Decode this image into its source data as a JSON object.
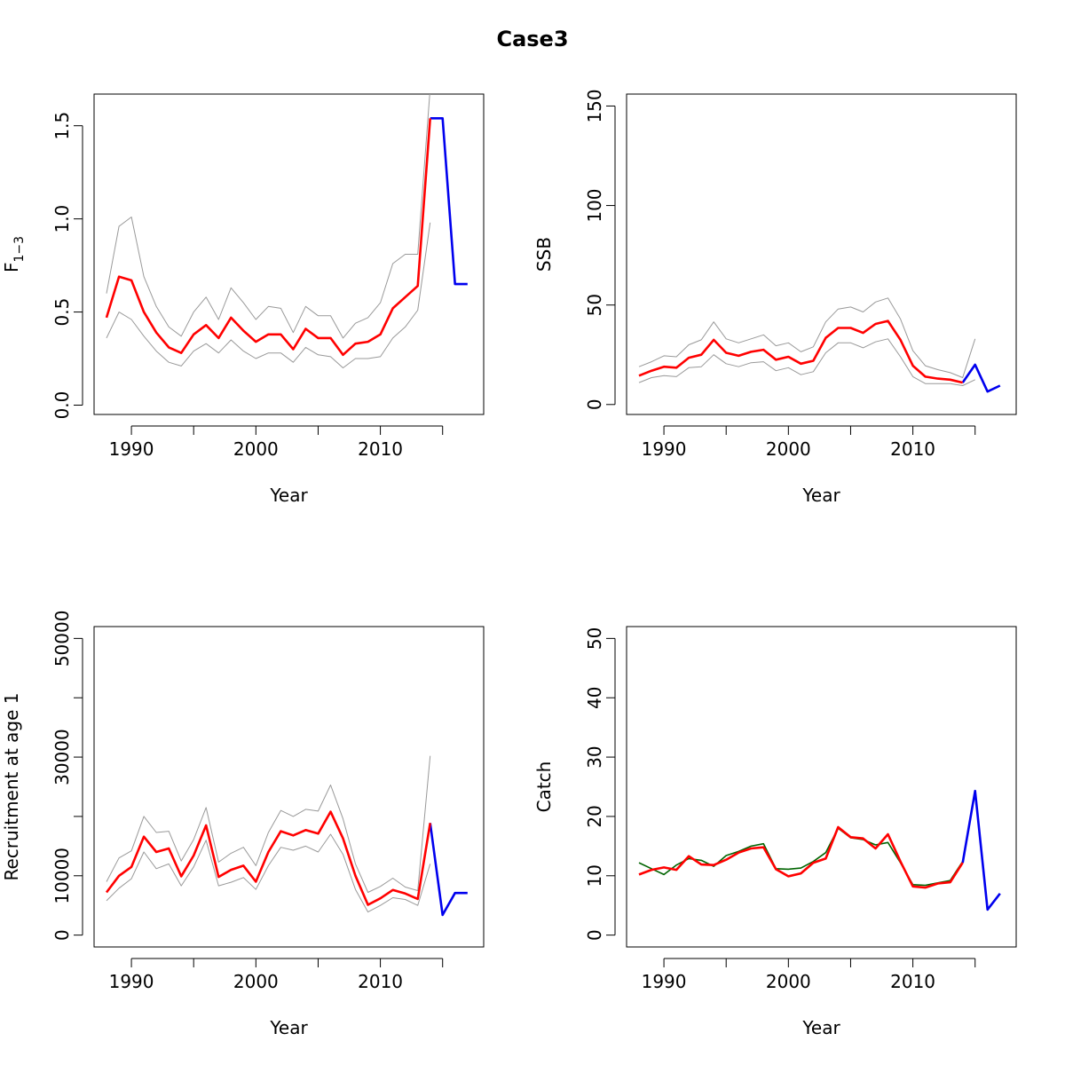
{
  "title": "Case3",
  "colors": {
    "estimate": "#ff0000",
    "ci": "#999999",
    "projection": "#0000ee",
    "observed": "#006400",
    "axis": "#000000"
  },
  "chart_data": [
    {
      "id": "f",
      "type": "line",
      "xlabel": "Year",
      "ylabel_main": "F",
      "ylabel_sub": "1−3",
      "xlim": [
        1987,
        2018.3
      ],
      "ylim": [
        -0.05,
        1.67
      ],
      "xticks": [
        1990,
        1995,
        2000,
        2005,
        2010,
        2015
      ],
      "xtick_labels": [
        "1990",
        "",
        "2000",
        "",
        "2010",
        ""
      ],
      "yticks": [
        0,
        0.5,
        1,
        1.5
      ],
      "ytick_labels": [
        "0.0",
        "0.5",
        "1.0",
        "1.5"
      ],
      "series": [
        {
          "role": "ci_lower",
          "x": [
            1988,
            1989,
            1990,
            1991,
            1992,
            1993,
            1994,
            1995,
            1996,
            1997,
            1998,
            1999,
            2000,
            2001,
            2002,
            2003,
            2004,
            2005,
            2006,
            2007,
            2008,
            2009,
            2010,
            2011,
            2012,
            2013,
            2014
          ],
          "values": [
            0.36,
            0.5,
            0.46,
            0.37,
            0.29,
            0.23,
            0.21,
            0.29,
            0.33,
            0.28,
            0.35,
            0.29,
            0.25,
            0.28,
            0.28,
            0.23,
            0.31,
            0.27,
            0.26,
            0.2,
            0.25,
            0.25,
            0.26,
            0.36,
            0.42,
            0.51,
            0.98
          ]
        },
        {
          "role": "ci_upper",
          "x": [
            1988,
            1989,
            1990,
            1991,
            1992,
            1993,
            1994,
            1995,
            1996,
            1997,
            1998,
            1999,
            2000,
            2001,
            2002,
            2003,
            2004,
            2005,
            2006,
            2007,
            2008,
            2009,
            2010,
            2011,
            2012,
            2013,
            2014
          ],
          "values": [
            0.6,
            0.96,
            1.01,
            0.69,
            0.53,
            0.42,
            0.37,
            0.5,
            0.58,
            0.46,
            0.63,
            0.55,
            0.46,
            0.53,
            0.52,
            0.39,
            0.53,
            0.48,
            0.48,
            0.36,
            0.44,
            0.47,
            0.55,
            0.76,
            0.81,
            0.81,
            1.7
          ]
        },
        {
          "role": "estimate",
          "x": [
            1988,
            1989,
            1990,
            1991,
            1992,
            1993,
            1994,
            1995,
            1996,
            1997,
            1998,
            1999,
            2000,
            2001,
            2002,
            2003,
            2004,
            2005,
            2006,
            2007,
            2008,
            2009,
            2010,
            2011,
            2012,
            2013,
            2014
          ],
          "values": [
            0.47,
            0.69,
            0.67,
            0.5,
            0.39,
            0.31,
            0.28,
            0.38,
            0.43,
            0.36,
            0.47,
            0.4,
            0.34,
            0.38,
            0.38,
            0.3,
            0.41,
            0.36,
            0.36,
            0.27,
            0.33,
            0.34,
            0.38,
            0.52,
            0.58,
            0.64,
            1.54
          ]
        },
        {
          "role": "projection",
          "x": [
            2014,
            2015,
            2016,
            2017
          ],
          "values": [
            1.54,
            1.54,
            0.65,
            0.65
          ]
        }
      ]
    },
    {
      "id": "ssb",
      "type": "line",
      "xlabel": "Year",
      "ylabel_main": "SSB",
      "ylabel_sub": "",
      "xlim": [
        1987,
        2018.3
      ],
      "ylim": [
        -5,
        156
      ],
      "xticks": [
        1990,
        1995,
        2000,
        2005,
        2010,
        2015
      ],
      "xtick_labels": [
        "1990",
        "",
        "2000",
        "",
        "2010",
        ""
      ],
      "yticks": [
        0,
        50,
        100,
        150
      ],
      "ytick_labels": [
        "0",
        "50",
        "100",
        "150"
      ],
      "series": [
        {
          "role": "ci_lower",
          "x": [
            1988,
            1989,
            1990,
            1991,
            1992,
            1993,
            1994,
            1995,
            1996,
            1997,
            1998,
            1999,
            2000,
            2001,
            2002,
            2003,
            2004,
            2005,
            2006,
            2007,
            2008,
            2009,
            2010,
            2011,
            2012,
            2013,
            2014,
            2015
          ],
          "values": [
            11,
            13.5,
            14.5,
            14,
            18.5,
            19,
            25,
            20.5,
            19,
            21,
            21.5,
            17,
            18.5,
            15,
            16.5,
            26,
            31,
            31,
            28.5,
            31.5,
            33,
            24,
            14,
            10.5,
            10.5,
            10.5,
            9.5,
            12.5
          ]
        },
        {
          "role": "ci_upper",
          "x": [
            1988,
            1989,
            1990,
            1991,
            1992,
            1993,
            1994,
            1995,
            1996,
            1997,
            1998,
            1999,
            2000,
            2001,
            2002,
            2003,
            2004,
            2005,
            2006,
            2007,
            2008,
            2009,
            2010,
            2011,
            2012,
            2013,
            2014,
            2015
          ],
          "values": [
            19,
            21.5,
            24.5,
            24,
            30,
            32.5,
            41.5,
            33,
            31,
            33,
            35,
            29.5,
            31,
            26.5,
            29,
            41.5,
            48,
            49,
            46.5,
            51.5,
            53.5,
            43,
            27,
            19.5,
            17.5,
            16,
            13.5,
            33
          ]
        },
        {
          "role": "estimate",
          "x": [
            1988,
            1989,
            1990,
            1991,
            1992,
            1993,
            1994,
            1995,
            1996,
            1997,
            1998,
            1999,
            2000,
            2001,
            2002,
            2003,
            2004,
            2005,
            2006,
            2007,
            2008,
            2009,
            2010,
            2011,
            2012,
            2013,
            2014
          ],
          "values": [
            14.5,
            17,
            19,
            18.5,
            23.5,
            25,
            32.5,
            26,
            24.5,
            26.5,
            27.5,
            22.5,
            24,
            20.5,
            22,
            33.5,
            38.5,
            38.5,
            36,
            40.5,
            42,
            32.5,
            19.5,
            14,
            13,
            12.5,
            11
          ]
        },
        {
          "role": "projection",
          "x": [
            2014,
            2015,
            2016,
            2017
          ],
          "values": [
            11,
            20,
            6.5,
            9.5
          ]
        }
      ]
    },
    {
      "id": "recruitment",
      "type": "line",
      "xlabel": "Year",
      "ylabel_main": "Recruitment at age 1",
      "ylabel_sub": "",
      "xlim": [
        1987,
        2018.3
      ],
      "ylim": [
        -2000,
        52000
      ],
      "xticks": [
        1990,
        1995,
        2000,
        2005,
        2010,
        2015
      ],
      "xtick_labels": [
        "1990",
        "",
        "2000",
        "",
        "2010",
        ""
      ],
      "yticks": [
        0,
        10000,
        20000,
        30000,
        40000,
        50000
      ],
      "ytick_labels": [
        "0",
        "10000",
        "",
        "30000",
        "",
        "50000"
      ],
      "series": [
        {
          "role": "ci_lower",
          "x": [
            1988,
            1989,
            1990,
            1991,
            1992,
            1993,
            1994,
            1995,
            1996,
            1997,
            1998,
            1999,
            2000,
            2001,
            2002,
            2003,
            2004,
            2005,
            2006,
            2007,
            2008,
            2009,
            2010,
            2011,
            2012,
            2013,
            2014
          ],
          "values": [
            5800,
            7900,
            9500,
            14000,
            11200,
            12000,
            8300,
            11500,
            16000,
            8300,
            8900,
            9700,
            7700,
            11700,
            14800,
            14300,
            15000,
            14000,
            17000,
            13600,
            7700,
            3900,
            5000,
            6300,
            6000,
            5000,
            12000
          ]
        },
        {
          "role": "ci_upper",
          "x": [
            1988,
            1989,
            1990,
            1991,
            1992,
            1993,
            1994,
            1995,
            1996,
            1997,
            1998,
            1999,
            2000,
            2001,
            2002,
            2003,
            2004,
            2005,
            2006,
            2007,
            2008,
            2009,
            2010,
            2011,
            2012,
            2013,
            2014
          ],
          "values": [
            9000,
            13000,
            14200,
            20000,
            17300,
            17500,
            12500,
            16100,
            21500,
            12300,
            13800,
            14800,
            11700,
            17300,
            21000,
            20000,
            21200,
            20900,
            25300,
            19600,
            12000,
            7200,
            8200,
            9600,
            8100,
            7500,
            30200
          ]
        },
        {
          "role": "estimate",
          "x": [
            1988,
            1989,
            1990,
            1991,
            1992,
            1993,
            1994,
            1995,
            1996,
            1997,
            1998,
            1999,
            2000,
            2001,
            2002,
            2003,
            2004,
            2005,
            2006,
            2007,
            2008,
            2009,
            2010,
            2011,
            2012,
            2013,
            2014
          ],
          "values": [
            7200,
            10000,
            11500,
            16600,
            14000,
            14600,
            9900,
            13400,
            18500,
            9800,
            11000,
            11700,
            9000,
            14000,
            17500,
            16800,
            17700,
            17100,
            20800,
            16300,
            10000,
            5100,
            6200,
            7600,
            7000,
            6100,
            18900
          ]
        },
        {
          "role": "projection",
          "x": [
            2014,
            2015,
            2016,
            2017
          ],
          "values": [
            18900,
            3400,
            7100,
            7100
          ]
        }
      ]
    },
    {
      "id": "catch",
      "type": "line",
      "xlabel": "Year",
      "ylabel_main": "Catch",
      "ylabel_sub": "",
      "xlim": [
        1987,
        2018.3
      ],
      "ylim": [
        -2,
        52
      ],
      "xticks": [
        1990,
        1995,
        2000,
        2005,
        2010,
        2015
      ],
      "xtick_labels": [
        "1990",
        "",
        "2000",
        "",
        "2010",
        ""
      ],
      "yticks": [
        0,
        10,
        20,
        30,
        40,
        50
      ],
      "ytick_labels": [
        "0",
        "10",
        "20",
        "30",
        "40",
        "50"
      ],
      "series": [
        {
          "role": "observed",
          "x": [
            1988,
            1989,
            1990,
            1991,
            1992,
            1993,
            1994,
            1995,
            1996,
            1997,
            1998,
            1999,
            2000,
            2001,
            2002,
            2003,
            2004,
            2005,
            2006,
            2007,
            2008,
            2009,
            2010,
            2011,
            2012,
            2013,
            2014
          ],
          "values": [
            12.2,
            11.2,
            10.2,
            11.8,
            12.9,
            12.6,
            11.6,
            13.4,
            14.1,
            15,
            15.4,
            11.2,
            11.1,
            11.3,
            12.4,
            13.9,
            18,
            16.4,
            16.1,
            15.2,
            15.6,
            12.2,
            8.5,
            8.4,
            8.8,
            9.2,
            12.4
          ]
        },
        {
          "role": "estimate",
          "x": [
            1988,
            1989,
            1990,
            1991,
            1992,
            1993,
            1994,
            1995,
            1996,
            1997,
            1998,
            1999,
            2000,
            2001,
            2002,
            2003,
            2004,
            2005,
            2006,
            2007,
            2008,
            2009,
            2010,
            2011,
            2012,
            2013,
            2014
          ],
          "values": [
            10.2,
            11,
            11.4,
            11,
            13.3,
            11.9,
            11.8,
            12.7,
            13.9,
            14.6,
            14.8,
            11.1,
            9.9,
            10.4,
            12.2,
            12.9,
            18.2,
            16.5,
            16.3,
            14.6,
            17,
            12.4,
            8.2,
            8,
            8.7,
            8.9,
            12.2
          ]
        },
        {
          "role": "projection",
          "x": [
            2014,
            2015,
            2016,
            2017
          ],
          "values": [
            12.2,
            24.3,
            4.3,
            7
          ]
        }
      ]
    }
  ]
}
